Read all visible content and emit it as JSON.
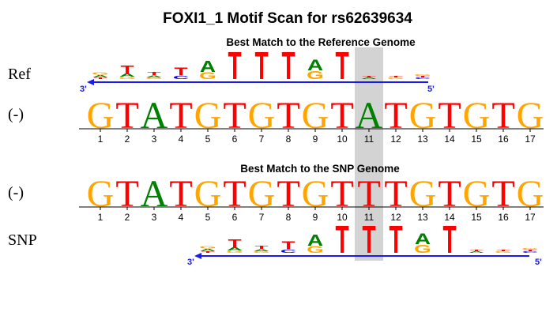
{
  "title": "FOXI1_1 Motif Scan for rs62639634",
  "ref_panel": {
    "subtitle": "Best Match to the Reference Genome",
    "logo_label": "Ref",
    "seq_label": "(-)",
    "sequence": [
      "G",
      "T",
      "A",
      "T",
      "G",
      "T",
      "G",
      "T",
      "G",
      "T",
      "A",
      "T",
      "G",
      "T",
      "G",
      "T",
      "G"
    ],
    "arrow_left": "3'",
    "arrow_right": "5'"
  },
  "snp_panel": {
    "subtitle": "Best Match to the SNP Genome",
    "logo_label": "SNP",
    "seq_label": "(-)",
    "sequence": [
      "G",
      "T",
      "A",
      "T",
      "G",
      "T",
      "G",
      "T",
      "G",
      "T",
      "T",
      "T",
      "G",
      "T",
      "G",
      "T",
      "G"
    ],
    "arrow_left": "3'",
    "arrow_right": "5'"
  },
  "positions": [
    "1",
    "2",
    "3",
    "4",
    "5",
    "6",
    "7",
    "8",
    "9",
    "10",
    "11",
    "12",
    "13",
    "14",
    "15",
    "16",
    "17"
  ],
  "highlight_position": 11,
  "motif_logo": [
    [
      {
        "b": "A",
        "h": 0.1
      },
      {
        "b": "G",
        "h": 0.1
      },
      {
        "b": "T",
        "h": 0.05
      }
    ],
    [
      {
        "b": "T",
        "h": 0.3
      },
      {
        "b": "A",
        "h": 0.12
      },
      {
        "b": "G",
        "h": 0.08
      }
    ],
    [
      {
        "b": "T",
        "h": 0.12
      },
      {
        "b": "A",
        "h": 0.08
      },
      {
        "b": "G",
        "h": 0.06
      }
    ],
    [
      {
        "b": "T",
        "h": 0.3
      },
      {
        "b": "C",
        "h": 0.12
      }
    ],
    [
      {
        "b": "A",
        "h": 0.42
      },
      {
        "b": "G",
        "h": 0.25
      }
    ],
    [
      {
        "b": "T",
        "h": 1.0
      }
    ],
    [
      {
        "b": "T",
        "h": 1.0
      }
    ],
    [
      {
        "b": "T",
        "h": 1.0
      }
    ],
    [
      {
        "b": "A",
        "h": 0.4
      },
      {
        "b": "G",
        "h": 0.3
      }
    ],
    [
      {
        "b": "T",
        "h": 1.0
      }
    ],
    [
      {
        "b": "T",
        "h": 0.05
      },
      {
        "b": "A",
        "h": 0.03
      }
    ],
    [
      {
        "b": "T",
        "h": 0.05
      },
      {
        "b": "G",
        "h": 0.04
      }
    ],
    [
      {
        "b": "T",
        "h": 0.06
      },
      {
        "b": "C",
        "h": 0.05
      },
      {
        "b": "G",
        "h": 0.06
      }
    ]
  ],
  "colors": {
    "A": "#008000",
    "C": "#0000ee",
    "G": "#ffa500",
    "T": "#ff0000",
    "arrow": "#1a1aee",
    "highlight": "#d3d3d3",
    "axis": "#000000"
  }
}
